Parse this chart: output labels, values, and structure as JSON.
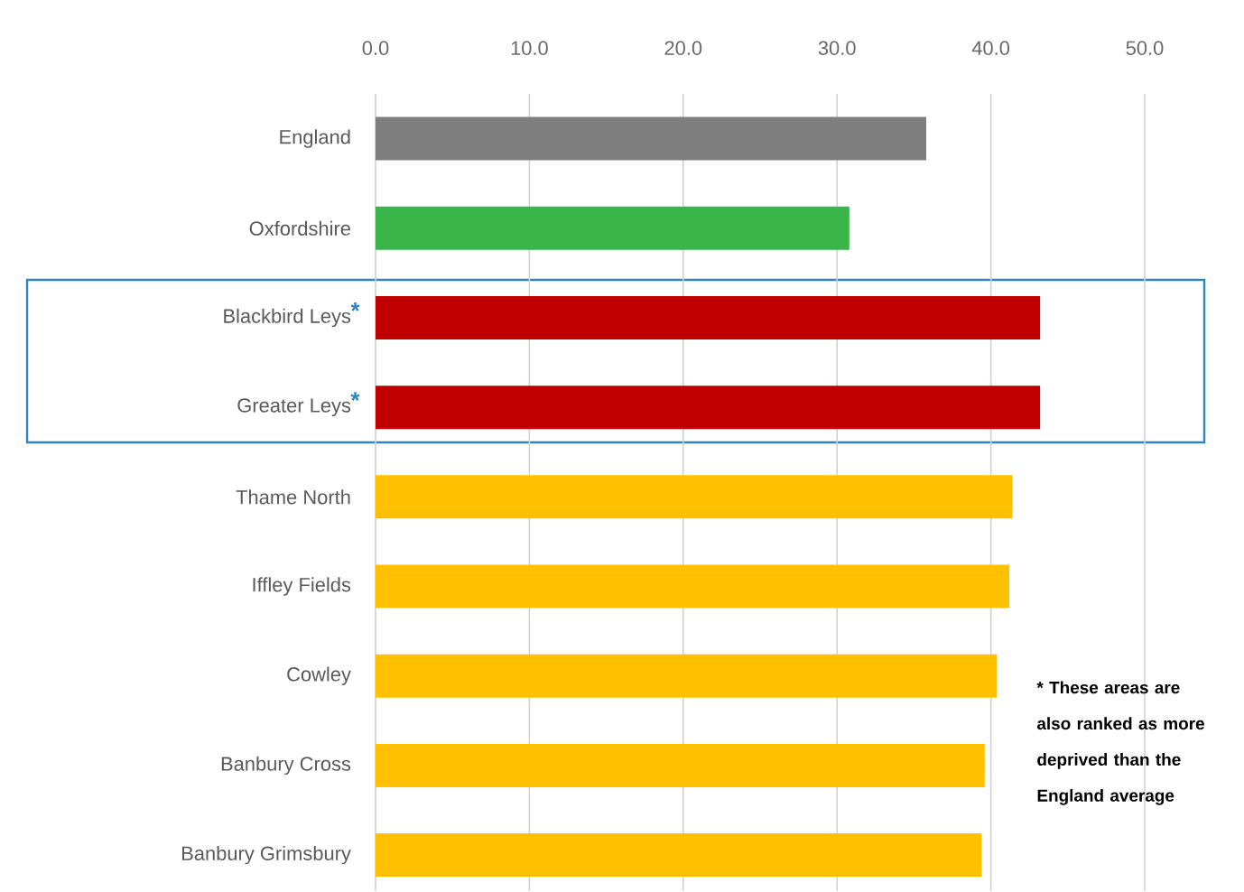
{
  "chart_data": {
    "type": "bar",
    "orientation": "horizontal",
    "categories": [
      "England",
      "Oxfordshire",
      "Blackbird Leys",
      "Greater Leys",
      "Thame North",
      "Iffley Fields",
      "Cowley",
      "Banbury Cross",
      "Banbury Grimsbury"
    ],
    "values": [
      35.8,
      30.8,
      43.2,
      43.2,
      41.4,
      41.2,
      40.4,
      39.6,
      39.4
    ],
    "colors": [
      "#7f7f7f",
      "#3ab54a",
      "#c00000",
      "#c00000",
      "#ffc000",
      "#ffc000",
      "#ffc000",
      "#ffc000",
      "#ffc000"
    ],
    "xlim": [
      0,
      50
    ],
    "xticks": [
      {
        "value": 0,
        "label": "0.0"
      },
      {
        "value": 10,
        "label": "10.0"
      },
      {
        "value": 20,
        "label": "20.0"
      },
      {
        "value": 30,
        "label": "30.0"
      },
      {
        "value": 40,
        "label": "40.0"
      },
      {
        "value": 50,
        "label": "50.0"
      }
    ],
    "grid": "x",
    "annotations": [
      "*",
      "*",
      "* These areas are also ranked as more deprived than the England average"
    ]
  }
}
